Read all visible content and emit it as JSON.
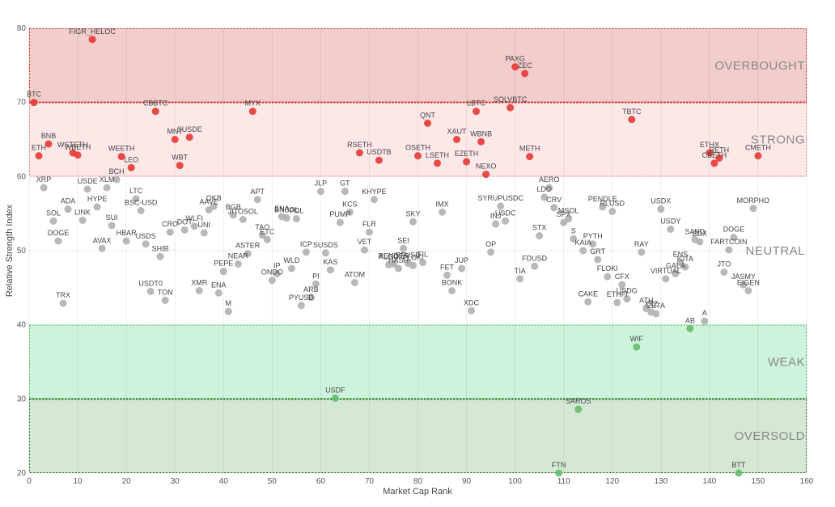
{
  "chart_data": {
    "type": "scatter",
    "xlabel": "Market Cap Rank",
    "ylabel": "Relative Strength Index",
    "xlim": [
      0,
      160
    ],
    "ylim": [
      20,
      80
    ],
    "x_ticks": [
      0,
      10,
      20,
      30,
      40,
      50,
      60,
      70,
      80,
      90,
      100,
      110,
      120,
      130,
      140,
      150,
      160
    ],
    "y_ticks": [
      20,
      30,
      40,
      50,
      60,
      70,
      80
    ],
    "grid": true,
    "zones": [
      {
        "label": "OVERBOUGHT",
        "from": 70,
        "to": 80,
        "color": "#f3cccc",
        "line": "#dd2222",
        "label_y": 75
      },
      {
        "label": "STRONG",
        "from": 60,
        "to": 70,
        "color": "#fde8e8",
        "line": "#ee8888",
        "label_y": 65
      },
      {
        "label": "NEUTRAL",
        "from": 40,
        "to": 60,
        "color": "#ffffff",
        "line": "",
        "label_y": 50
      },
      {
        "label": "WEAK",
        "from": 30,
        "to": 40,
        "color": "#cdf3dc",
        "line": "#55bb55",
        "label_y": 35
      },
      {
        "label": "OVERSOLD",
        "from": 20,
        "to": 30,
        "color": "#d5e8d5",
        "line": "#227722",
        "label_y": 25
      }
    ],
    "colors": {
      "overbought": "#e53935",
      "neutral": "#b0b0b0",
      "oversold": "#66bb6a"
    },
    "points": [
      {
        "name": "BTC",
        "x": 1,
        "y": 70
      },
      {
        "name": "ETH",
        "x": 2,
        "y": 62.8
      },
      {
        "name": "BNB",
        "x": 4,
        "y": 64.4
      },
      {
        "name": "WSTETH",
        "x": 9,
        "y": 63.2
      },
      {
        "name": "WBETH",
        "x": 10,
        "y": 62.9
      },
      {
        "name": "FIGR_HELOC",
        "x": 13,
        "y": 78.5
      },
      {
        "name": "WEETH",
        "x": 19,
        "y": 62.7
      },
      {
        "name": "LEO",
        "x": 21,
        "y": 61.2
      },
      {
        "name": "CBBTC",
        "x": 26,
        "y": 68.8
      },
      {
        "name": "MNT",
        "x": 30,
        "y": 65
      },
      {
        "name": "SUSDE",
        "x": 33,
        "y": 65.3
      },
      {
        "name": "WBT",
        "x": 31,
        "y": 61.5
      },
      {
        "name": "MYX",
        "x": 46,
        "y": 68.8
      },
      {
        "name": "RSETH",
        "x": 68,
        "y": 63.2
      },
      {
        "name": "USDTB",
        "x": 72,
        "y": 62.2
      },
      {
        "name": "QNT",
        "x": 82,
        "y": 67.2
      },
      {
        "name": "OSETH",
        "x": 80,
        "y": 62.8
      },
      {
        "name": "LSETH",
        "x": 84,
        "y": 61.8
      },
      {
        "name": "XAUT",
        "x": 88,
        "y": 65
      },
      {
        "name": "EZETH",
        "x": 90,
        "y": 62
      },
      {
        "name": "LBTC",
        "x": 92,
        "y": 68.8
      },
      {
        "name": "WBNB",
        "x": 93,
        "y": 64.7
      },
      {
        "name": "NEXO",
        "x": 94,
        "y": 60.3
      },
      {
        "name": "SOLVBTC",
        "x": 99,
        "y": 69.3
      },
      {
        "name": "PAXG",
        "x": 100,
        "y": 74.8
      },
      {
        "name": "ZEC",
        "x": 102,
        "y": 73.9
      },
      {
        "name": "METH",
        "x": 103,
        "y": 62.7
      },
      {
        "name": "TBTC",
        "x": 124,
        "y": 67.7
      },
      {
        "name": "ETHX",
        "x": 140,
        "y": 63.2
      },
      {
        "name": "RETH",
        "x": 142,
        "y": 62.5
      },
      {
        "name": "CBETH",
        "x": 141,
        "y": 61.8
      },
      {
        "name": "CMETH",
        "x": 150,
        "y": 62.8
      },
      {
        "name": "XRP",
        "x": 3,
        "y": 58.5
      },
      {
        "name": "USDE",
        "x": 12,
        "y": 58.3
      },
      {
        "name": "XLM",
        "x": 16,
        "y": 58.5
      },
      {
        "name": "BCH",
        "x": 18,
        "y": 59.6
      },
      {
        "name": "ADA",
        "x": 8,
        "y": 55.6
      },
      {
        "name": "HYPE",
        "x": 14,
        "y": 55.9
      },
      {
        "name": "LTC",
        "x": 22,
        "y": 57
      },
      {
        "name": "BSC-USD",
        "x": 23,
        "y": 55.4
      },
      {
        "name": "SOL",
        "x": 5,
        "y": 54
      },
      {
        "name": "LINK",
        "x": 11,
        "y": 54.1
      },
      {
        "name": "SUI",
        "x": 17,
        "y": 53.4
      },
      {
        "name": "DOGE",
        "x": 6,
        "y": 51.3
      },
      {
        "name": "AVAX",
        "x": 15,
        "y": 50.3
      },
      {
        "name": "HBAR",
        "x": 20,
        "y": 51.3
      },
      {
        "name": "USDS",
        "x": 24,
        "y": 50.9
      },
      {
        "name": "SHIB",
        "x": 27,
        "y": 49.2
      },
      {
        "name": "CRO",
        "x": 29,
        "y": 52.5
      },
      {
        "name": "DOT",
        "x": 32,
        "y": 52.8
      },
      {
        "name": "WLFI",
        "x": 34,
        "y": 53.3
      },
      {
        "name": "UNI",
        "x": 36,
        "y": 52.4
      },
      {
        "name": "AAVE",
        "x": 37,
        "y": 55.5
      },
      {
        "name": "OKB",
        "x": 38,
        "y": 56
      },
      {
        "name": "BGB",
        "x": 42,
        "y": 54.8
      },
      {
        "name": "JITOSOL",
        "x": 44,
        "y": 54.2
      },
      {
        "name": "APT",
        "x": 47,
        "y": 56.9
      },
      {
        "name": "TAO",
        "x": 48,
        "y": 52.1
      },
      {
        "name": "ETC",
        "x": 49,
        "y": 51.5
      },
      {
        "name": "ENA",
        "x": 52,
        "y": 54.6
      },
      {
        "name": "BNSOL",
        "x": 53,
        "y": 54.4
      },
      {
        "name": "POL",
        "x": 55,
        "y": 54.3
      },
      {
        "name": "ASTER",
        "x": 45,
        "y": 49.6
      },
      {
        "name": "NEAR",
        "x": 43,
        "y": 48.2
      },
      {
        "name": "PEPE",
        "x": 40,
        "y": 47.2
      },
      {
        "name": "USDT0",
        "x": 25,
        "y": 44.5
      },
      {
        "name": "TRX",
        "x": 7,
        "y": 42.9
      },
      {
        "name": "TON",
        "x": 28,
        "y": 43.3
      },
      {
        "name": "XMR",
        "x": 35,
        "y": 44.6
      },
      {
        "name": "ENA",
        "x": 39,
        "y": 44.3
      },
      {
        "name": "M",
        "x": 41,
        "y": 41.8
      },
      {
        "name": "ONDO",
        "x": 50,
        "y": 46
      },
      {
        "name": "IP",
        "x": 51,
        "y": 46.9
      },
      {
        "name": "WLD",
        "x": 54,
        "y": 47.6
      },
      {
        "name": "ICP",
        "x": 57,
        "y": 49.8
      },
      {
        "name": "SUSDS",
        "x": 61,
        "y": 49.7
      },
      {
        "name": "KAS",
        "x": 62,
        "y": 47.4
      },
      {
        "name": "PI",
        "x": 59,
        "y": 45.5
      },
      {
        "name": "ARB",
        "x": 58,
        "y": 43.7
      },
      {
        "name": "PYUSD",
        "x": 56,
        "y": 42.6
      },
      {
        "name": "ATOM",
        "x": 67,
        "y": 45.7
      },
      {
        "name": "JLP",
        "x": 60,
        "y": 58
      },
      {
        "name": "GT",
        "x": 65,
        "y": 58
      },
      {
        "name": "KCS",
        "x": 66,
        "y": 55.2
      },
      {
        "name": "PUMP",
        "x": 64,
        "y": 53.8
      },
      {
        "name": "KHYPE",
        "x": 71,
        "y": 56.9
      },
      {
        "name": "FLR",
        "x": 70,
        "y": 52.5
      },
      {
        "name": "VET",
        "x": 69,
        "y": 50.1
      },
      {
        "name": "SEI",
        "x": 77,
        "y": 50.3
      },
      {
        "name": "ALGO",
        "x": 74,
        "y": 48.1
      },
      {
        "name": "RENDER",
        "x": 75,
        "y": 48.2
      },
      {
        "name": "HASH",
        "x": 76,
        "y": 47.6
      },
      {
        "name": "BFUSD",
        "x": 78,
        "y": 48.3
      },
      {
        "name": "FLOKI",
        "x": 79,
        "y": 48
      },
      {
        "name": "FIL",
        "x": 81,
        "y": 48.4
      },
      {
        "name": "SKY",
        "x": 79,
        "y": 53.9
      },
      {
        "name": "IMX",
        "x": 85,
        "y": 55.2
      },
      {
        "name": "FET",
        "x": 86,
        "y": 46.7
      },
      {
        "name": "BONK",
        "x": 87,
        "y": 44.6
      },
      {
        "name": "JUP",
        "x": 89,
        "y": 47.6
      },
      {
        "name": "XDC",
        "x": 91,
        "y": 41.9
      },
      {
        "name": "OP",
        "x": 95,
        "y": 49.8
      },
      {
        "name": "INJ",
        "x": 96,
        "y": 53.6
      },
      {
        "name": "SYRUPUSDC",
        "x": 97,
        "y": 56
      },
      {
        "name": "USDC",
        "x": 98,
        "y": 54
      },
      {
        "name": "TIA",
        "x": 101,
        "y": 46.2
      },
      {
        "name": "FDUSD",
        "x": 104,
        "y": 47.9
      },
      {
        "name": "STX",
        "x": 105,
        "y": 52
      },
      {
        "name": "LDO",
        "x": 106,
        "y": 57.2
      },
      {
        "name": "AERO",
        "x": 107,
        "y": 58.5
      },
      {
        "name": "CRV",
        "x": 108,
        "y": 55.8
      },
      {
        "name": "SPX",
        "x": 110,
        "y": 53.8
      },
      {
        "name": "MSOL",
        "x": 111,
        "y": 54.3
      },
      {
        "name": "S",
        "x": 112,
        "y": 51.6
      },
      {
        "name": "KAIA",
        "x": 114,
        "y": 50
      },
      {
        "name": "PYTH",
        "x": 116,
        "y": 50.9
      },
      {
        "name": "GRT",
        "x": 117,
        "y": 48.8
      },
      {
        "name": "CAKE",
        "x": 115,
        "y": 43.1
      },
      {
        "name": "FLOKI",
        "x": 119,
        "y": 46.5
      },
      {
        "name": "CFX",
        "x": 122,
        "y": 45.4
      },
      {
        "name": "ETHFI",
        "x": 121,
        "y": 43
      },
      {
        "name": "USDG",
        "x": 123,
        "y": 43.5
      },
      {
        "name": "PENDLE",
        "x": 118,
        "y": 55.9
      },
      {
        "name": "RLUSD",
        "x": 120,
        "y": 55.3
      },
      {
        "name": "RAY",
        "x": 126,
        "y": 49.8
      },
      {
        "name": "USDX",
        "x": 130,
        "y": 55.6
      },
      {
        "name": "USDY",
        "x": 132,
        "y": 52.9
      },
      {
        "name": "ATH",
        "x": 127,
        "y": 42.2
      },
      {
        "name": "XTZ",
        "x": 128,
        "y": 41.7
      },
      {
        "name": "ZETA",
        "x": 129,
        "y": 41.5
      },
      {
        "name": "VIRTUAL",
        "x": 131,
        "y": 46.2
      },
      {
        "name": "GALA",
        "x": 133,
        "y": 46.9
      },
      {
        "name": "ENS",
        "x": 134,
        "y": 48.4
      },
      {
        "name": "IOTA",
        "x": 135,
        "y": 47.8
      },
      {
        "name": "SAND",
        "x": 137,
        "y": 51.5
      },
      {
        "name": "BDX",
        "x": 138,
        "y": 51.2
      },
      {
        "name": "JTO",
        "x": 143,
        "y": 47.1
      },
      {
        "name": "FARTCOIN",
        "x": 144,
        "y": 50.1
      },
      {
        "name": "DOGE",
        "x": 145,
        "y": 51.8
      },
      {
        "name": "JASMY",
        "x": 147,
        "y": 45.4
      },
      {
        "name": "EIGEN",
        "x": 148,
        "y": 44.6
      },
      {
        "name": "MORPHO",
        "x": 149,
        "y": 55.7
      },
      {
        "name": "A",
        "x": 139,
        "y": 40.5
      },
      {
        "name": "AB",
        "x": 136,
        "y": 39.5
      },
      {
        "name": "WIF",
        "x": 125,
        "y": 37
      },
      {
        "name": "USDF",
        "x": 63,
        "y": 30.1
      },
      {
        "name": "SAROS",
        "x": 113,
        "y": 28.6
      },
      {
        "name": "FTN",
        "x": 109,
        "y": 20
      },
      {
        "name": "BTT",
        "x": 146,
        "y": 20
      }
    ]
  }
}
